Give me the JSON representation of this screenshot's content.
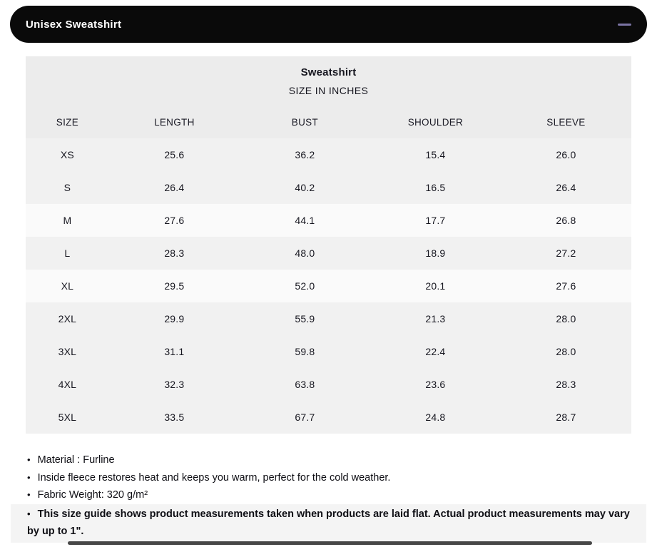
{
  "header": {
    "title": "Unisex Sweatshirt",
    "collapse_icon": "minus-icon"
  },
  "size_chart": {
    "title": "Sweatshirt",
    "subtitle": "SIZE IN INCHES",
    "columns": [
      "SIZE",
      "LENGTH",
      "BUST",
      "SHOULDER",
      "SLEEVE"
    ],
    "rows": [
      {
        "size": "XS",
        "length": "25.6",
        "bust": "36.2",
        "shoulder": "15.4",
        "sleeve": "26.0",
        "highlight": false
      },
      {
        "size": "S",
        "length": "26.4",
        "bust": "40.2",
        "shoulder": "16.5",
        "sleeve": "26.4",
        "highlight": false
      },
      {
        "size": "M",
        "length": "27.6",
        "bust": "44.1",
        "shoulder": "17.7",
        "sleeve": "26.8",
        "highlight": true
      },
      {
        "size": "L",
        "length": "28.3",
        "bust": "48.0",
        "shoulder": "18.9",
        "sleeve": "27.2",
        "highlight": false
      },
      {
        "size": "XL",
        "length": "29.5",
        "bust": "52.0",
        "shoulder": "20.1",
        "sleeve": "27.6",
        "highlight": true
      },
      {
        "size": "2XL",
        "length": "29.9",
        "bust": "55.9",
        "shoulder": "21.3",
        "sleeve": "28.0",
        "highlight": false
      },
      {
        "size": "3XL",
        "length": "31.1",
        "bust": "59.8",
        "shoulder": "22.4",
        "sleeve": "28.0",
        "highlight": false
      },
      {
        "size": "4XL",
        "length": "32.3",
        "bust": "63.8",
        "shoulder": "23.6",
        "sleeve": "28.3",
        "highlight": false
      },
      {
        "size": "5XL",
        "length": "33.5",
        "bust": "67.7",
        "shoulder": "24.8",
        "sleeve": "28.7",
        "highlight": false
      }
    ]
  },
  "notes": [
    {
      "text": "Material : Furline",
      "bold": false,
      "highlight": false
    },
    {
      "text": "Inside fleece restores heat and keeps you warm, perfect for the cold weather.",
      "bold": false,
      "highlight": false
    },
    {
      "text": "Fabric Weight: 320 g/m²",
      "bold": false,
      "highlight": false
    },
    {
      "text": "This size guide shows product measurements taken when products are laid flat. Actual product measurements may vary by up to 1\".",
      "bold": true,
      "highlight": true
    }
  ],
  "colors": {
    "header_bg": "#0a0a0a",
    "header_text": "#ffffff",
    "minus_icon": "#7b74a4",
    "table_header_bg": "#ececec",
    "row_bg": "#f1f1f1",
    "row_highlight_bg": "#fafafa",
    "note_highlight_bg": "#f4f4f4",
    "scrollbar_thumb": "#474747"
  }
}
